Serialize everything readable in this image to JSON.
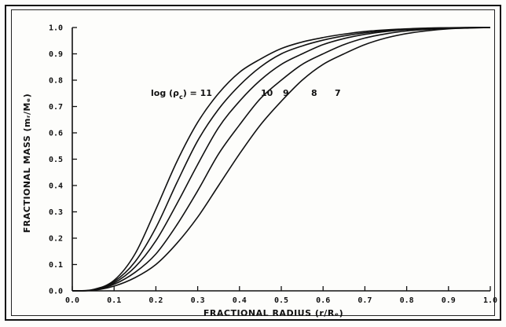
{
  "chart_data": {
    "type": "line",
    "title": "",
    "xlabel": "FRACTIONAL RADIUS (r/Rₑ)",
    "ylabel": "FRACTIONAL MASS (mᵣ/Mₑ)",
    "xlim": [
      0.0,
      1.0
    ],
    "ylim": [
      0.0,
      1.0
    ],
    "x_ticks": [
      "0.0",
      "0.1",
      "0.2",
      "0.3",
      "0.4",
      "0.5",
      "0.6",
      "0.7",
      "0.8",
      "0.9",
      "1.0"
    ],
    "y_ticks": [
      "0.0",
      "0.1",
      "0.2",
      "0.3",
      "0.4",
      "0.5",
      "0.6",
      "0.7",
      "0.8",
      "0.9",
      "1.0"
    ],
    "grid": false,
    "annotation": {
      "prefix": "log (ρ",
      "subscript": "c",
      "suffix": ") = 11",
      "labels": [
        "10",
        "9",
        "8",
        "7"
      ]
    },
    "x": [
      0.0,
      0.05,
      0.1,
      0.15,
      0.2,
      0.25,
      0.3,
      0.35,
      0.4,
      0.45,
      0.5,
      0.55,
      0.6,
      0.65,
      0.7,
      0.75,
      0.8,
      0.85,
      0.9,
      0.95,
      1.0
    ],
    "series": [
      {
        "name": "11",
        "values": [
          0.0,
          0.005,
          0.04,
          0.14,
          0.31,
          0.49,
          0.64,
          0.75,
          0.83,
          0.88,
          0.92,
          0.945,
          0.962,
          0.975,
          0.985,
          0.991,
          0.995,
          0.998,
          0.999,
          1.0,
          1.0
        ]
      },
      {
        "name": "10",
        "values": [
          0.0,
          0.004,
          0.035,
          0.11,
          0.24,
          0.41,
          0.57,
          0.69,
          0.78,
          0.85,
          0.9,
          0.93,
          0.952,
          0.968,
          0.98,
          0.988,
          0.993,
          0.997,
          0.999,
          1.0,
          1.0
        ]
      },
      {
        "name": "9",
        "values": [
          0.0,
          0.003,
          0.03,
          0.09,
          0.19,
          0.33,
          0.48,
          0.62,
          0.72,
          0.8,
          0.86,
          0.9,
          0.935,
          0.958,
          0.974,
          0.985,
          0.992,
          0.996,
          0.998,
          1.0,
          1.0
        ]
      },
      {
        "name": "8",
        "values": [
          0.0,
          0.003,
          0.025,
          0.07,
          0.14,
          0.25,
          0.38,
          0.52,
          0.63,
          0.73,
          0.8,
          0.86,
          0.9,
          0.935,
          0.96,
          0.976,
          0.987,
          0.993,
          0.997,
          0.999,
          1.0
        ]
      },
      {
        "name": "7",
        "values": [
          0.0,
          0.002,
          0.018,
          0.05,
          0.1,
          0.18,
          0.28,
          0.4,
          0.52,
          0.63,
          0.72,
          0.8,
          0.86,
          0.9,
          0.935,
          0.96,
          0.977,
          0.988,
          0.995,
          0.998,
          1.0
        ]
      }
    ]
  }
}
